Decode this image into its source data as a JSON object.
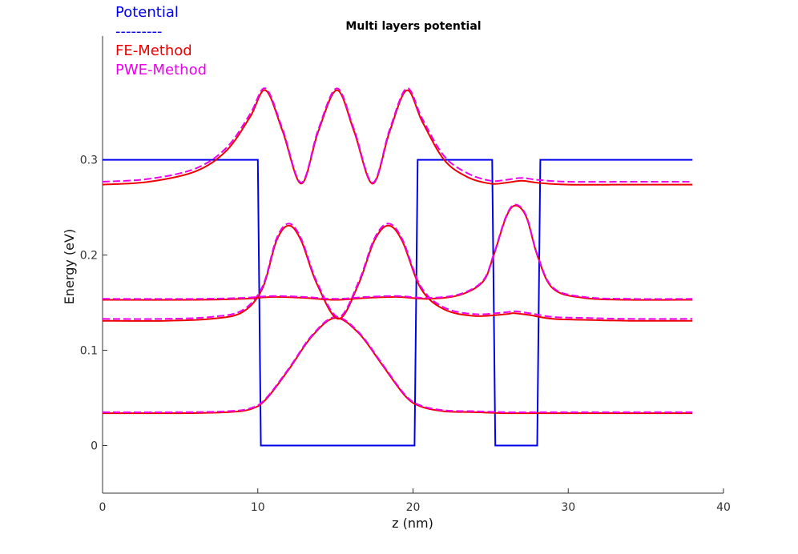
{
  "chart_data": {
    "type": "line",
    "title": "Multi layers potential",
    "xlabel": "z (nm)",
    "ylabel": "Energy (eV)",
    "xlim": [
      0,
      40
    ],
    "ylim": [
      -0.05,
      0.43
    ],
    "xticks": [
      "0",
      "10",
      "20",
      "30",
      "40"
    ],
    "yticks": [
      "0",
      "0.1",
      "0.2",
      "0.3"
    ],
    "grid": false,
    "legend_position": "top-left, outside plot",
    "legend": [
      "Potential",
      "---------",
      "FE-Method",
      "PWE-Method"
    ],
    "potential": {
      "name": "Potential",
      "color": "#0000ee",
      "x": [
        0,
        10,
        10.2,
        20.1,
        20.3,
        25.1,
        25.3,
        28,
        28.2,
        38
      ],
      "y": [
        0.3,
        0.3,
        0,
        0,
        0.3,
        0.3,
        0,
        0,
        0.3,
        0.3
      ]
    },
    "series": [
      {
        "name": "FE-Method state 1",
        "method": "FE-Method",
        "color": "#ee0000",
        "dash": "solid",
        "x": [
          0,
          5,
          8,
          9.5,
          10.5,
          12,
          13.5,
          15,
          16.5,
          18,
          19.5,
          20.5,
          22,
          24,
          26,
          28,
          30,
          34,
          38
        ],
        "y": [
          0.034,
          0.034,
          0.035,
          0.038,
          0.048,
          0.08,
          0.115,
          0.134,
          0.118,
          0.085,
          0.052,
          0.041,
          0.036,
          0.035,
          0.034,
          0.034,
          0.034,
          0.034,
          0.034
        ]
      },
      {
        "name": "PWE-Method state 1",
        "method": "PWE-Method",
        "color": "#ee00ee",
        "dash": "dashed",
        "x": [
          0,
          5,
          8,
          9.5,
          10.5,
          12,
          13.5,
          15,
          16.5,
          18,
          19.5,
          20.5,
          22,
          24,
          26,
          28,
          30,
          34,
          38
        ],
        "y": [
          0.035,
          0.035,
          0.036,
          0.039,
          0.049,
          0.081,
          0.116,
          0.135,
          0.119,
          0.086,
          0.053,
          0.042,
          0.037,
          0.036,
          0.035,
          0.035,
          0.035,
          0.035,
          0.035
        ]
      },
      {
        "name": "FE-Method state 2",
        "method": "FE-Method",
        "color": "#ee0000",
        "dash": "solid",
        "x": [
          0,
          4,
          7,
          9,
          10.3,
          11.2,
          12,
          12.8,
          13.8,
          15.2,
          16.5,
          17.5,
          18.4,
          19.3,
          20.5,
          22,
          24,
          26,
          26.5,
          27.5,
          29,
          31,
          34,
          38
        ],
        "y": [
          0.131,
          0.131,
          0.133,
          0.14,
          0.165,
          0.215,
          0.231,
          0.215,
          0.17,
          0.133,
          0.17,
          0.215,
          0.231,
          0.215,
          0.165,
          0.143,
          0.136,
          0.138,
          0.139,
          0.137,
          0.133,
          0.132,
          0.131,
          0.131
        ]
      },
      {
        "name": "PWE-Method state 2",
        "method": "PWE-Method",
        "color": "#ee00ee",
        "dash": "dashed",
        "x": [
          0,
          4,
          7,
          9,
          10.3,
          11.2,
          12,
          12.8,
          13.8,
          15.2,
          16.5,
          17.5,
          18.4,
          19.3,
          20.5,
          22,
          24,
          26,
          26.5,
          27.5,
          29,
          31,
          34,
          38
        ],
        "y": [
          0.133,
          0.133,
          0.135,
          0.142,
          0.167,
          0.217,
          0.233,
          0.217,
          0.172,
          0.135,
          0.172,
          0.217,
          0.233,
          0.217,
          0.167,
          0.145,
          0.138,
          0.14,
          0.141,
          0.139,
          0.135,
          0.134,
          0.133,
          0.133
        ]
      },
      {
        "name": "FE-Method state 3",
        "method": "FE-Method",
        "color": "#ee0000",
        "dash": "solid",
        "x": [
          0,
          6,
          9,
          11,
          13,
          15,
          17,
          19,
          21,
          23,
          24.5,
          25.2,
          26,
          26.6,
          27.3,
          28,
          29,
          31,
          34,
          38
        ],
        "y": [
          0.153,
          0.153,
          0.154,
          0.156,
          0.155,
          0.153,
          0.155,
          0.156,
          0.154,
          0.158,
          0.172,
          0.2,
          0.24,
          0.252,
          0.24,
          0.2,
          0.165,
          0.155,
          0.153,
          0.153
        ]
      },
      {
        "name": "PWE-Method state 3",
        "method": "PWE-Method",
        "color": "#ee00ee",
        "dash": "dashed",
        "x": [
          0,
          6,
          9,
          11,
          13,
          15,
          17,
          19,
          21,
          23,
          24.5,
          25.2,
          26,
          26.6,
          27.3,
          28,
          29,
          31,
          34,
          38
        ],
        "y": [
          0.154,
          0.154,
          0.155,
          0.157,
          0.156,
          0.154,
          0.156,
          0.157,
          0.155,
          0.159,
          0.173,
          0.201,
          0.241,
          0.253,
          0.241,
          0.201,
          0.166,
          0.156,
          0.154,
          0.154
        ]
      },
      {
        "name": "FE-Method state 4",
        "method": "FE-Method",
        "color": "#ee0000",
        "dash": "solid",
        "x": [
          0,
          3,
          6,
          8,
          9.5,
          10.5,
          11.6,
          12.8,
          13.9,
          15.1,
          16.2,
          17.4,
          18.5,
          19.6,
          20.6,
          22,
          23.5,
          25,
          26,
          27,
          28,
          30,
          34,
          38
        ],
        "y": [
          0.274,
          0.277,
          0.288,
          0.31,
          0.345,
          0.373,
          0.33,
          0.275,
          0.33,
          0.373,
          0.33,
          0.275,
          0.33,
          0.373,
          0.34,
          0.3,
          0.282,
          0.275,
          0.276,
          0.278,
          0.276,
          0.274,
          0.274,
          0.274
        ]
      },
      {
        "name": "PWE-Method state 4",
        "method": "PWE-Method",
        "color": "#ee00ee",
        "dash": "dashed",
        "x": [
          0,
          3,
          6,
          8,
          9.5,
          10.5,
          11.6,
          12.8,
          13.9,
          15.1,
          16.2,
          17.4,
          18.5,
          19.6,
          20.6,
          22,
          23.5,
          25,
          26,
          27,
          28,
          30,
          34,
          38
        ],
        "y": [
          0.277,
          0.28,
          0.291,
          0.313,
          0.348,
          0.375,
          0.332,
          0.276,
          0.332,
          0.375,
          0.332,
          0.276,
          0.332,
          0.375,
          0.343,
          0.304,
          0.286,
          0.278,
          0.279,
          0.281,
          0.279,
          0.277,
          0.277,
          0.277
        ]
      }
    ]
  }
}
